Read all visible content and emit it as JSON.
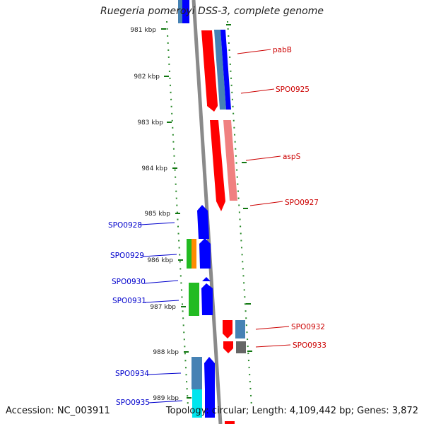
{
  "title": "Ruegeria pomeroyi DSS-3, complete genome",
  "footer": {
    "accession": "Accession: NC_003911",
    "summary": "Topology: circular; Length: 4,109,442 bp; Genes: 3,872"
  },
  "ticks": [
    "981 kbp",
    "982 kbp",
    "983 kbp",
    "984 kbp",
    "985 kbp",
    "986 kbp",
    "987 kbp",
    "988 kbp",
    "989 kbp"
  ],
  "genes_right": [
    "pabB",
    "SPO0925",
    "aspS",
    "SPO0927",
    "SPO0932",
    "SPO0933"
  ],
  "genes_left": [
    "SPO0928",
    "SPO0929",
    "SPO0930",
    "SPO0931",
    "SPO0934",
    "SPO0935"
  ],
  "colors": {
    "forward": "#ff0000",
    "forward_light": "#f08080",
    "reverse": "#0000ff",
    "steel": "#4682b4",
    "green": "#22bb22",
    "orange": "#ff8c00",
    "cyan": "#00e5ee",
    "gray": "#666666",
    "axis": "#888888",
    "tick": "#117711",
    "label_right": "#cc0000",
    "label_left": "#0000cc"
  }
}
